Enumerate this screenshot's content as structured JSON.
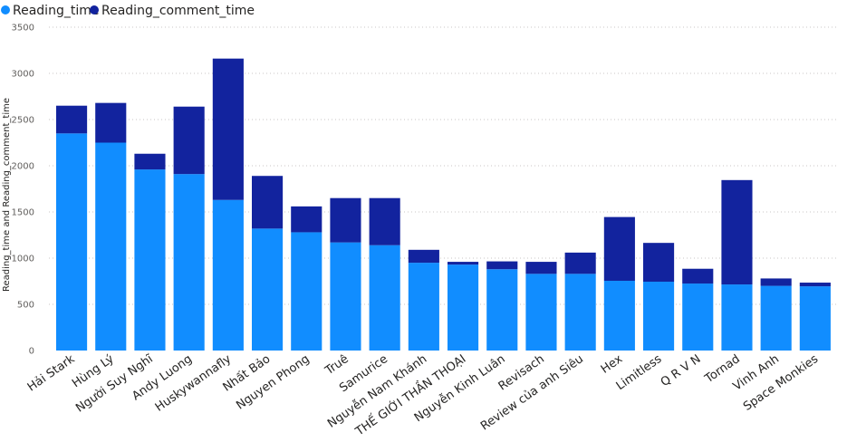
{
  "chart_data": {
    "type": "bar",
    "stacked": true,
    "categories": [
      "Hải Stark",
      "Hùng Lý",
      "Người Suy Nghĩ",
      "Andy Luong",
      "Huskywannafly",
      "Nhất Bảo",
      "Nguyen Phong",
      "Truê",
      "Samurice",
      "Nguyễn Nam Khánh",
      "THẾ GIỚI THẦN THOẠI",
      "Nguyễn Kinh Luân",
      "Revisach",
      "Review của anh Siêu",
      "Hex",
      "Limitless",
      "Q R V N",
      "Tornad",
      "Vinh Anh",
      "Space Monkies"
    ],
    "series": [
      {
        "name": "Reading_time",
        "color": "#118dff",
        "values": [
          2350,
          2250,
          1960,
          1910,
          1630,
          1320,
          1280,
          1170,
          1140,
          950,
          930,
          880,
          830,
          830,
          755,
          745,
          725,
          715,
          700,
          695
        ]
      },
      {
        "name": "Reading_comment_time",
        "color": "#12239e",
        "values": [
          300,
          430,
          170,
          730,
          1530,
          570,
          280,
          480,
          510,
          140,
          30,
          85,
          130,
          230,
          690,
          420,
          160,
          1130,
          80,
          40
        ]
      }
    ],
    "ylabel": "Reading_time and Reading_comment_time",
    "xlabel": "",
    "ylim": [
      0,
      3500
    ],
    "yticks": [
      0,
      500,
      1000,
      1500,
      2000,
      2500,
      3000,
      3500
    ],
    "grid": true,
    "legend": "top-left"
  }
}
